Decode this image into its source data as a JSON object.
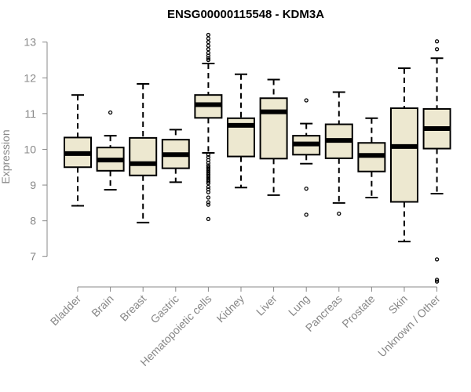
{
  "chart_data": {
    "type": "boxplot",
    "title": "ENSG00000115548 - KDM3A",
    "xlabel": "",
    "ylabel": "Expression",
    "ylim": [
      6.15,
      13.3
    ],
    "yticks": [
      "7",
      "8",
      "9",
      "10",
      "11",
      "12",
      "13"
    ],
    "box_fill": "#ede8d0",
    "stroke_color": "#000000",
    "axis_color": "#888888",
    "categories": [
      "Bladder",
      "Brain",
      "Breast",
      "Gastric",
      "Hematopoietic cells",
      "Kidney",
      "Liver",
      "Lung",
      "Pancreas",
      "Prostate",
      "Skin",
      "Unknown / Other"
    ],
    "series": [
      {
        "name": "Bladder",
        "whisker_low": 8.42,
        "q1": 9.5,
        "median": 9.88,
        "q3": 10.33,
        "whisker_high": 11.52,
        "outliers": []
      },
      {
        "name": "Brain",
        "whisker_low": 8.87,
        "q1": 9.4,
        "median": 9.7,
        "q3": 10.05,
        "whisker_high": 10.38,
        "outliers": [
          11.03
        ]
      },
      {
        "name": "Breast",
        "whisker_low": 7.95,
        "q1": 9.27,
        "median": 9.6,
        "q3": 10.32,
        "whisker_high": 11.83,
        "outliers": []
      },
      {
        "name": "Gastric",
        "whisker_low": 9.08,
        "q1": 9.47,
        "median": 9.85,
        "q3": 10.27,
        "whisker_high": 10.55,
        "outliers": []
      },
      {
        "name": "Hematopoietic cells",
        "whisker_low": 9.9,
        "q1": 10.88,
        "median": 11.25,
        "q3": 11.52,
        "whisker_high": 12.4,
        "outliers": [
          13.2,
          13.1,
          13.0,
          12.9,
          12.8,
          12.7,
          12.62,
          12.55,
          12.5,
          9.85,
          9.78,
          9.7,
          9.62,
          9.55,
          9.5,
          9.45,
          9.4,
          9.35,
          9.3,
          9.25,
          9.2,
          9.15,
          9.1,
          9.05,
          8.95,
          8.88,
          8.8,
          8.65,
          8.52,
          8.45,
          8.05
        ]
      },
      {
        "name": "Kidney",
        "whisker_low": 8.93,
        "q1": 9.8,
        "median": 10.67,
        "q3": 10.87,
        "whisker_high": 12.1,
        "outliers": []
      },
      {
        "name": "Liver",
        "whisker_low": 8.72,
        "q1": 9.74,
        "median": 11.05,
        "q3": 11.43,
        "whisker_high": 11.95,
        "outliers": []
      },
      {
        "name": "Lung",
        "whisker_low": 9.6,
        "q1": 9.85,
        "median": 10.15,
        "q3": 10.38,
        "whisker_high": 10.72,
        "outliers": [
          11.37,
          8.9,
          8.17
        ]
      },
      {
        "name": "Pancreas",
        "whisker_low": 8.5,
        "q1": 9.75,
        "median": 10.25,
        "q3": 10.7,
        "whisker_high": 11.6,
        "outliers": [
          8.2
        ]
      },
      {
        "name": "Prostate",
        "whisker_low": 8.65,
        "q1": 9.38,
        "median": 9.83,
        "q3": 10.18,
        "whisker_high": 10.87,
        "outliers": []
      },
      {
        "name": "Skin",
        "whisker_low": 7.42,
        "q1": 8.53,
        "median": 10.08,
        "q3": 11.15,
        "whisker_high": 12.27,
        "outliers": []
      },
      {
        "name": "Unknown / Other",
        "whisker_low": 8.76,
        "q1": 10.02,
        "median": 10.58,
        "q3": 11.13,
        "whisker_high": 12.55,
        "outliers": [
          13.02,
          12.8,
          6.92,
          6.35,
          6.3
        ]
      }
    ]
  }
}
